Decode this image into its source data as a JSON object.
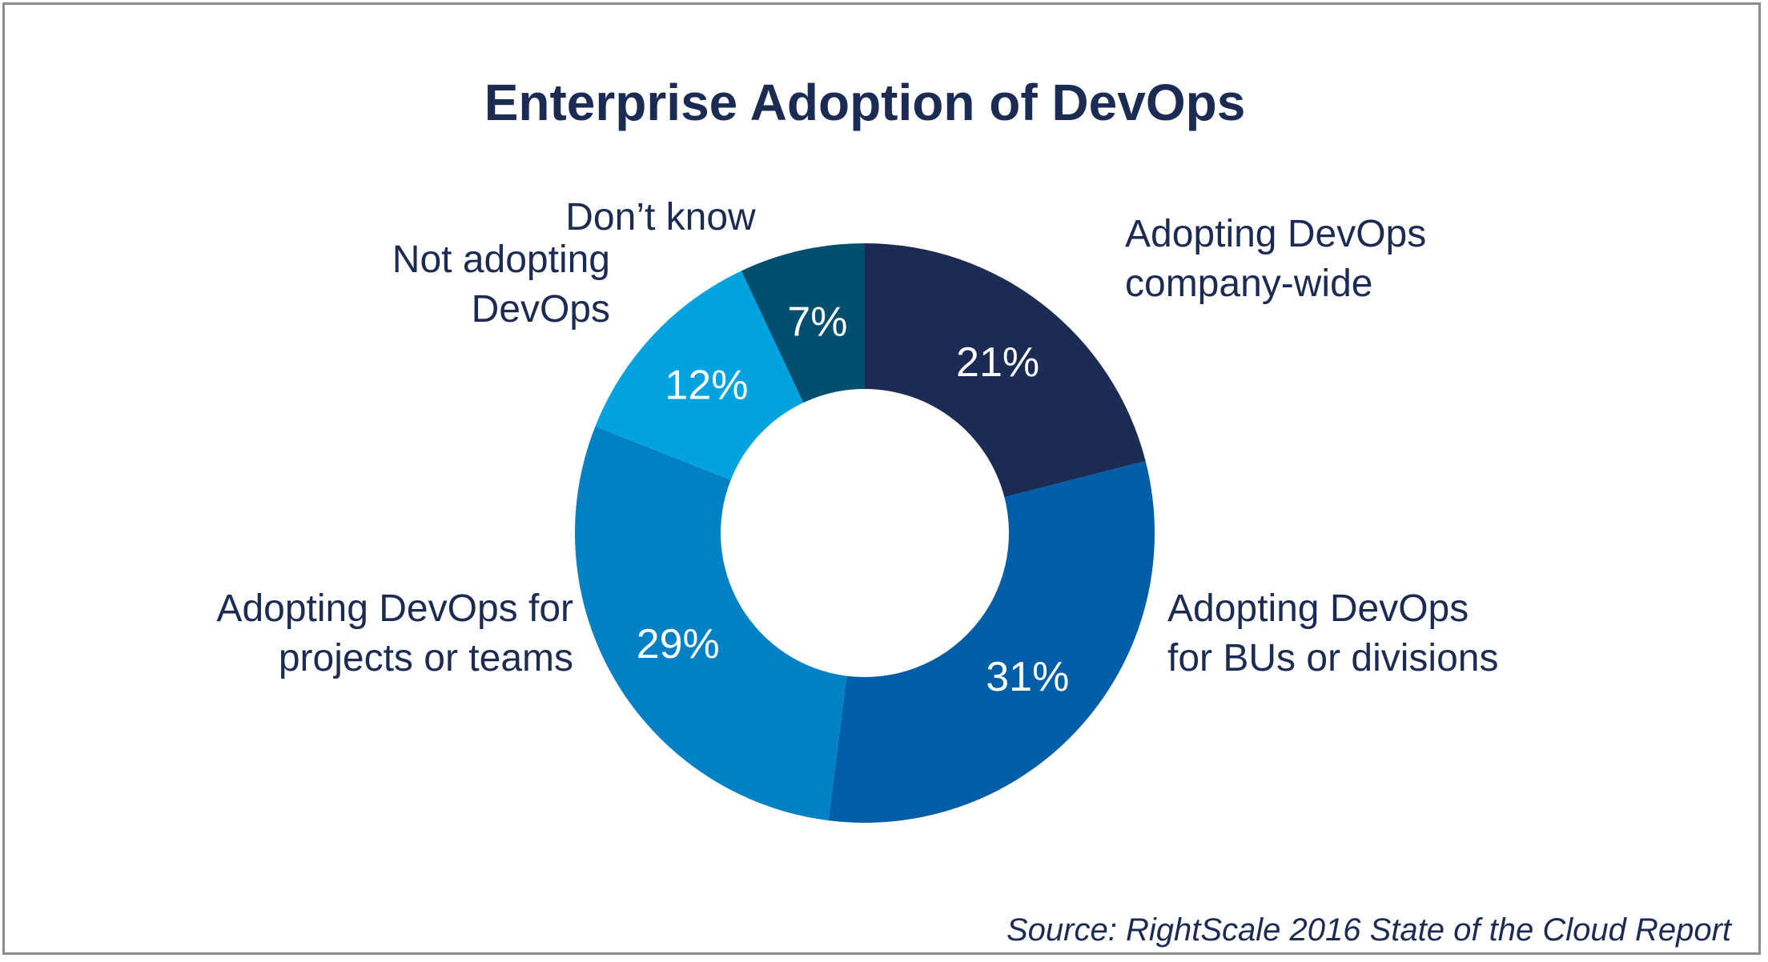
{
  "chart_data": {
    "type": "pie",
    "style": "donut",
    "title": "Enterprise Adoption of DevOps",
    "source": "Source: RightScale 2016 State of the Cloud Report",
    "start_angle_deg": 0,
    "direction": "clockwise",
    "slices": [
      {
        "label_lines": [
          "Adopting DevOps",
          "company-wide"
        ],
        "value": 21,
        "value_label": "21%",
        "color": "#1c2b53"
      },
      {
        "label_lines": [
          "Adopting DevOps",
          "for BUs or divisions"
        ],
        "value": 31,
        "value_label": "31%",
        "color": "#005ea8"
      },
      {
        "label_lines": [
          "Adopting DevOps for",
          "projects or teams"
        ],
        "value": 29,
        "value_label": "29%",
        "color": "#0081c6"
      },
      {
        "label_lines": [
          "Not adopting",
          "DevOps"
        ],
        "value": 12,
        "value_label": "12%",
        "color": "#00a3e0"
      },
      {
        "label_lines": [
          "Don’t know"
        ],
        "value": 7,
        "value_label": "7%",
        "color": "#004f6e"
      }
    ]
  }
}
